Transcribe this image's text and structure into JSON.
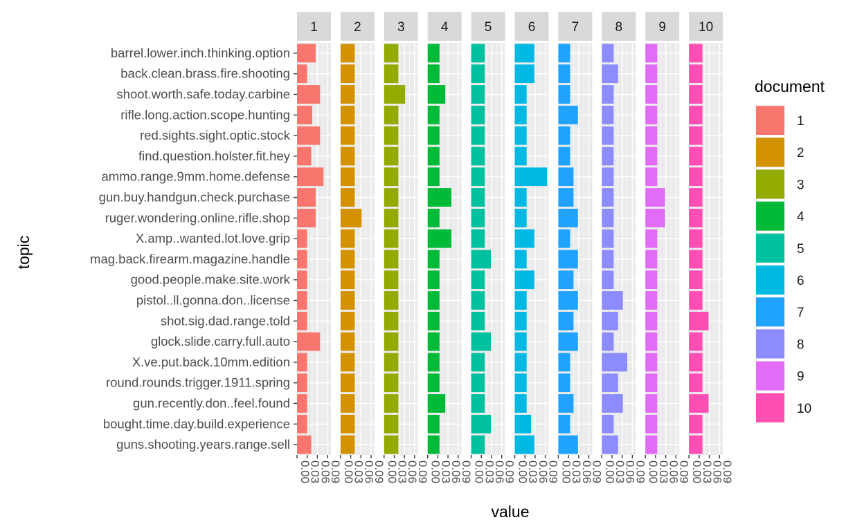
{
  "chart_data": {
    "type": "bar",
    "orientation": "horizontal",
    "faceted": true,
    "xlabel": "value",
    "ylabel": "topic",
    "legend_title": "document",
    "legend_position": "right",
    "grid": true,
    "facets": [
      "1",
      "2",
      "3",
      "4",
      "5",
      "6",
      "7",
      "8",
      "9",
      "10"
    ],
    "x_ticks": [
      "0.00",
      "0.03",
      "0.06",
      "0.09"
    ],
    "xlim": [
      0,
      0.1
    ],
    "topics": [
      "barrel.lower.inch.thinking.option",
      "back.clean.brass.fire.shooting",
      "shoot.worth.safe.today.carbine",
      "rifle.long.action.scope.hunting",
      "red.sights.sight.optic.stock",
      "find.question.holster.fit.hey",
      "ammo.range.9mm.home.defense",
      "gun.buy.handgun.check.purchase",
      "ruger.wondering.online.rifle.shop",
      "X.amp..wanted.lot.love.grip",
      "mag.back.firearm.magazine.handle",
      "good.people.make.site.work",
      "pistol..ll.gonna.don..license",
      "shot.sig.dad.range.told",
      "glock.slide.carry.full.auto",
      "X.ve.put.back.10mm.edition",
      "round.rounds.trigger.1911.spring",
      "gun.recently.don..feel.found",
      "bought.time.day.build.experience",
      "guns.shooting.years.range.sell"
    ],
    "legend": [
      {
        "label": "1",
        "color": "#F8766D"
      },
      {
        "label": "2",
        "color": "#D39200"
      },
      {
        "label": "3",
        "color": "#93AA00"
      },
      {
        "label": "4",
        "color": "#00BA38"
      },
      {
        "label": "5",
        "color": "#00C19F"
      },
      {
        "label": "6",
        "color": "#00B9E3"
      },
      {
        "label": "7",
        "color": "#1FA3FF"
      },
      {
        "label": "8",
        "color": "#8C8CFF"
      },
      {
        "label": "9",
        "color": "#E26BF7"
      },
      {
        "label": "10",
        "color": "#FF4FB5"
      }
    ],
    "series": [
      {
        "name": "1",
        "values": [
          0.055,
          0.03,
          0.068,
          0.045,
          0.068,
          0.042,
          0.078,
          0.055,
          0.055,
          0.03,
          0.03,
          0.03,
          0.03,
          0.03,
          0.068,
          0.03,
          0.03,
          0.03,
          0.03,
          0.042
        ]
      },
      {
        "name": "2",
        "values": [
          0.042,
          0.042,
          0.042,
          0.042,
          0.042,
          0.042,
          0.042,
          0.042,
          0.062,
          0.042,
          0.042,
          0.042,
          0.042,
          0.042,
          0.042,
          0.042,
          0.042,
          0.042,
          0.042,
          0.042
        ]
      },
      {
        "name": "3",
        "values": [
          0.042,
          0.042,
          0.062,
          0.042,
          0.042,
          0.042,
          0.042,
          0.042,
          0.042,
          0.042,
          0.042,
          0.042,
          0.042,
          0.042,
          0.042,
          0.042,
          0.042,
          0.042,
          0.042,
          0.042
        ]
      },
      {
        "name": "4",
        "values": [
          0.035,
          0.035,
          0.052,
          0.035,
          0.035,
          0.035,
          0.035,
          0.07,
          0.035,
          0.07,
          0.035,
          0.035,
          0.035,
          0.035,
          0.035,
          0.035,
          0.035,
          0.052,
          0.035,
          0.035
        ]
      },
      {
        "name": "5",
        "values": [
          0.04,
          0.04,
          0.04,
          0.04,
          0.04,
          0.04,
          0.04,
          0.04,
          0.04,
          0.04,
          0.058,
          0.04,
          0.04,
          0.04,
          0.058,
          0.04,
          0.04,
          0.04,
          0.058,
          0.04
        ]
      },
      {
        "name": "6",
        "values": [
          0.058,
          0.058,
          0.035,
          0.035,
          0.035,
          0.035,
          0.095,
          0.035,
          0.035,
          0.058,
          0.035,
          0.058,
          0.035,
          0.035,
          0.035,
          0.035,
          0.035,
          0.035,
          0.048,
          0.058
        ]
      },
      {
        "name": "7",
        "values": [
          0.035,
          0.035,
          0.035,
          0.058,
          0.035,
          0.035,
          0.045,
          0.045,
          0.058,
          0.035,
          0.058,
          0.045,
          0.058,
          0.045,
          0.058,
          0.035,
          0.035,
          0.045,
          0.035,
          0.058
        ]
      },
      {
        "name": "8",
        "values": [
          0.035,
          0.048,
          0.035,
          0.035,
          0.035,
          0.035,
          0.035,
          0.035,
          0.035,
          0.035,
          0.035,
          0.035,
          0.062,
          0.048,
          0.035,
          0.075,
          0.048,
          0.062,
          0.035,
          0.048
        ]
      },
      {
        "name": "9",
        "values": [
          0.035,
          0.035,
          0.035,
          0.035,
          0.035,
          0.035,
          0.035,
          0.058,
          0.058,
          0.035,
          0.035,
          0.035,
          0.035,
          0.035,
          0.035,
          0.035,
          0.035,
          0.035,
          0.035,
          0.035
        ]
      },
      {
        "name": "10",
        "values": [
          0.04,
          0.04,
          0.04,
          0.04,
          0.04,
          0.04,
          0.04,
          0.04,
          0.04,
          0.04,
          0.04,
          0.04,
          0.04,
          0.058,
          0.04,
          0.04,
          0.04,
          0.058,
          0.04,
          0.04
        ]
      }
    ]
  }
}
